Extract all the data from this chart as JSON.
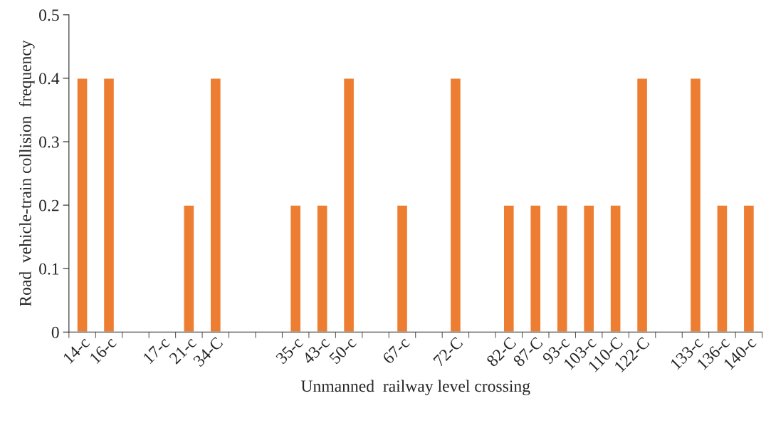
{
  "chart_data": {
    "type": "bar",
    "xlabel": "Unmanned  railway level crossing",
    "ylabel": "Road  vehicle-train collision  frequency",
    "categories": [
      "14-c",
      "16-c",
      null,
      "17-c",
      "21-c",
      "34-C",
      null,
      null,
      "35-c",
      "43-c",
      "50-c",
      null,
      "67-c",
      null,
      "72-C",
      null,
      "82-C",
      "87-C",
      "93-c",
      "103-c",
      "110-C",
      "122-C",
      null,
      "133-c",
      "136-c",
      "140-c"
    ],
    "values": [
      0.4,
      0.4,
      null,
      null,
      0.2,
      0.4,
      null,
      null,
      0.2,
      0.2,
      0.4,
      null,
      0.2,
      null,
      0.4,
      null,
      0.2,
      0.2,
      0.2,
      0.2,
      0.2,
      0.4,
      null,
      0.4,
      0.2,
      0.2
    ],
    "color": "#ed7d31",
    "ylim": [
      0,
      0.5
    ],
    "yticks": [
      0,
      0.1,
      0.2,
      0.3,
      0.4,
      0.5
    ],
    "grid": false,
    "legend": false
  }
}
